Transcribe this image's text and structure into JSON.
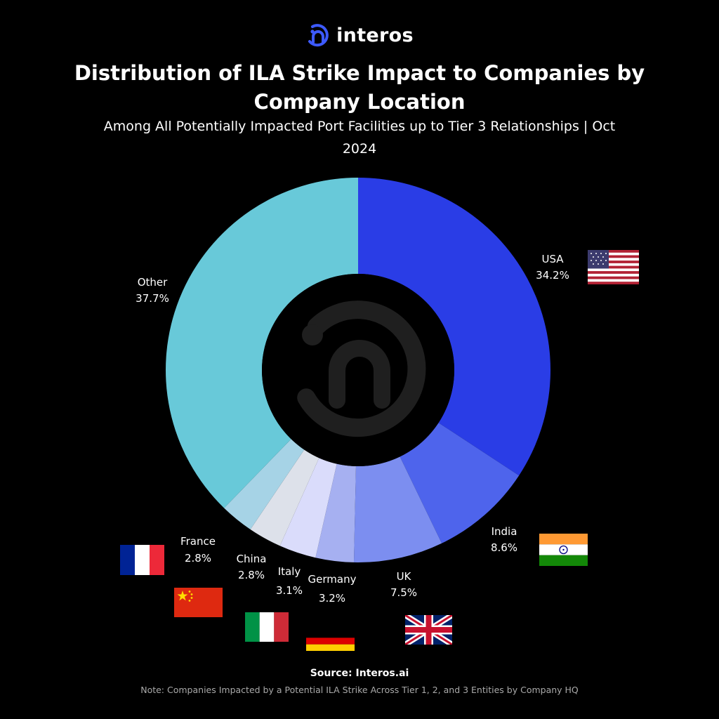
{
  "brand": {
    "name": "interos",
    "logo_icon": "interos-logo-icon"
  },
  "title": "Distribution of ILA Strike Impact to Companies by Company Location",
  "subtitle": "Among All Potentially Impacted Port Facilities up to Tier 3 Relationships | Oct 2024",
  "source": "Source: Interos.ai",
  "note": "Note: Companies Impacted by a Potential ILA Strike Across Tier 1, 2, and 3 Entities by Company HQ",
  "colors": {
    "background": "#000000",
    "center": "#000000",
    "center_logo": "#1f1f1f",
    "brand_accent": "#3d5afe"
  },
  "chart_data": {
    "type": "pie",
    "donut": true,
    "start": "12 o'clock, clockwise",
    "slices": [
      {
        "label": "USA",
        "value": 34.2,
        "value_label": "34.2%",
        "color": "#2a3de6",
        "flag": "us-flag-icon"
      },
      {
        "label": "India",
        "value": 8.6,
        "value_label": "8.6%",
        "color": "#4e64ec",
        "flag": "india-flag-icon"
      },
      {
        "label": "UK",
        "value": 7.5,
        "value_label": "7.5%",
        "color": "#7c8ef0",
        "flag": "uk-flag-icon"
      },
      {
        "label": "Germany",
        "value": 3.2,
        "value_label": "3.2%",
        "color": "#a6b0f1",
        "flag": "germany-flag-icon"
      },
      {
        "label": "Italy",
        "value": 3.1,
        "value_label": "3.1%",
        "color": "#dadcfb",
        "flag": "italy-flag-icon"
      },
      {
        "label": "China",
        "value": 2.8,
        "value_label": "2.8%",
        "color": "#dde1ea",
        "flag": "china-flag-icon"
      },
      {
        "label": "France",
        "value": 2.8,
        "value_label": "2.8%",
        "color": "#a6d3e6",
        "flag": "france-flag-icon"
      },
      {
        "label": "Other",
        "value": 37.7,
        "value_label": "37.7%",
        "color": "#68c9d9",
        "flag": ""
      }
    ]
  }
}
